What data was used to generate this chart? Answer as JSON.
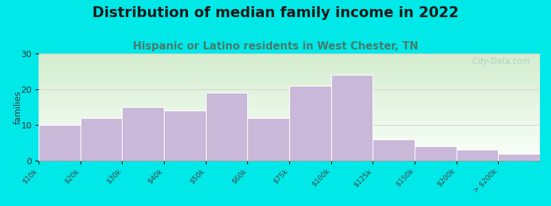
{
  "title": "Distribution of median family income in 2022",
  "subtitle": "Hispanic or Latino residents in West Chester, TN",
  "categories": [
    "$10k",
    "$20k",
    "$30k",
    "$40k",
    "$50k",
    "$60k",
    "$75k",
    "$100k",
    "$125k",
    "$150k",
    "$200k",
    "> $200k"
  ],
  "values": [
    10,
    12,
    15,
    14,
    19,
    12,
    21,
    24,
    6,
    4,
    3,
    2
  ],
  "bar_color": "#c9b8d8",
  "bar_edge_color": "#ffffff",
  "ylabel": "families",
  "ylim": [
    0,
    30
  ],
  "yticks": [
    0,
    10,
    20,
    30
  ],
  "background_outer": "#00e8e8",
  "plot_bg_top": "#d4edcf",
  "plot_bg_bottom": "#f5fdf5",
  "title_fontsize": 15,
  "subtitle_fontsize": 11,
  "subtitle_color": "#4a7a6a",
  "watermark_text": "  City-Data.com",
  "watermark_color": "#b0c8c8",
  "grid_color": "#e0d0d0"
}
